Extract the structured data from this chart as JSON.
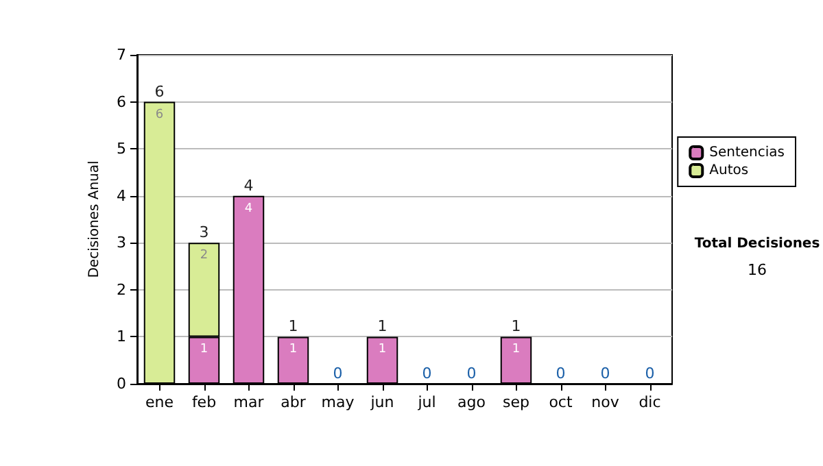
{
  "chart_data": {
    "type": "bar",
    "stacked": true,
    "ylabel": "Decisiones Anual",
    "categories": [
      "ene",
      "feb",
      "mar",
      "abr",
      "may",
      "jun",
      "jul",
      "ago",
      "sep",
      "oct",
      "nov",
      "dic"
    ],
    "series": [
      {
        "name": "Sentencias",
        "color": "#da7cbf",
        "values": [
          0,
          1,
          4,
          1,
          0,
          1,
          0,
          0,
          1,
          0,
          0,
          0
        ],
        "value_labels": [
          null,
          "1",
          "4",
          "1",
          null,
          "1",
          null,
          null,
          "1",
          null,
          null,
          null
        ]
      },
      {
        "name": "Autos",
        "color": "#d8ec96",
        "values": [
          6,
          2,
          0,
          0,
          0,
          0,
          0,
          0,
          0,
          0,
          0,
          0
        ],
        "value_labels": [
          "6",
          "2",
          null,
          null,
          null,
          null,
          null,
          null,
          null,
          null,
          null,
          null
        ]
      }
    ],
    "totals": [
      "6",
      "3",
      "4",
      "1",
      "0",
      "1",
      "0",
      "0",
      "1",
      "0",
      "0",
      "0"
    ],
    "ylim": [
      0,
      7
    ],
    "yticks": [
      0,
      1,
      2,
      3,
      4,
      5,
      6,
      7
    ],
    "grid": "y",
    "legend": "right",
    "annotations": [
      "Total Decisiones",
      "16"
    ]
  }
}
